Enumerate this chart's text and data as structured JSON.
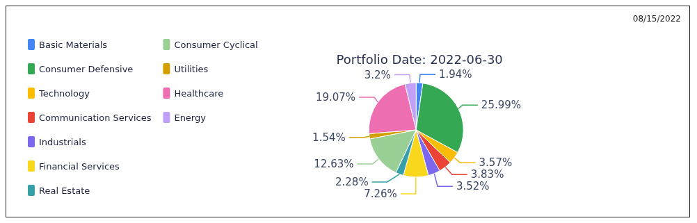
{
  "chart_data": {
    "type": "pie",
    "title": "Portfolio Date: 2022-06-30",
    "annotations": [
      "08/15/2022"
    ],
    "categories": [
      "Basic Materials",
      "Consumer Defensive",
      "Technology",
      "Communication Services",
      "Industrials",
      "Financial Services",
      "Real Estate",
      "Consumer Cyclical",
      "Utilities",
      "Healthcare",
      "Energy"
    ],
    "values": [
      1.94,
      25.99,
      3.57,
      3.83,
      3.52,
      7.26,
      2.28,
      12.63,
      1.54,
      19.07,
      3.2
    ],
    "colors": [
      "#4285f4",
      "#34a853",
      "#fbbc04",
      "#ea4335",
      "#7b68ee",
      "#f9d71c",
      "#36a0a8",
      "#9ad095",
      "#d4a000",
      "#ed6fb1",
      "#c3a0f7"
    ],
    "value_labels": [
      "1.94%",
      "25.99%",
      "3.57%",
      "3.83%",
      "3.52%",
      "7.26%",
      "2.28%",
      "12.63%",
      "1.54%",
      "19.07%",
      "3.2%"
    ],
    "legend": "left"
  }
}
